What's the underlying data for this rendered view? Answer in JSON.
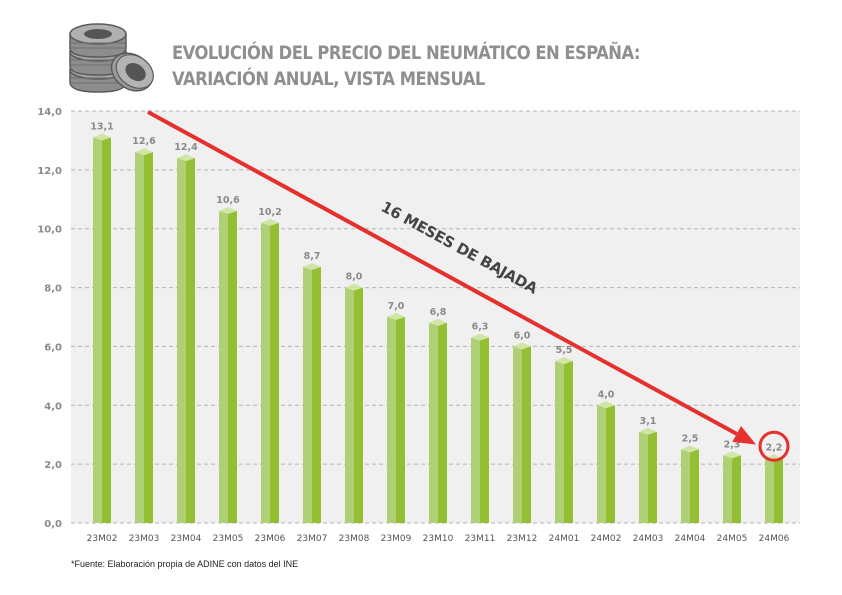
{
  "header": {
    "icon": "tire-stack-icon",
    "title_line1": "EVOLUCIÓN DEL PRECIO DEL NEUMÁTICO EN ESPAÑA:",
    "title_line2": "VARIACIÓN ANUAL, VISTA MENSUAL"
  },
  "footnote": "*Fuente: Elaboración propia de ADINE con datos del INE",
  "colors": {
    "bar_light": "#b0d078",
    "bar_dark": "#95bf33",
    "bar_top": "#cfe6a6",
    "plot_bg": "#eff0ef",
    "grid": "#b5b5b5",
    "arrow": "#e5312d",
    "highlight_circle": "#e5312d"
  },
  "chart_data": {
    "type": "bar",
    "title": "EVOLUCIÓN DEL PRECIO DEL NEUMÁTICO EN ESPAÑA: VARIACIÓN ANUAL, VISTA MENSUAL",
    "xlabel": "",
    "ylabel": "",
    "categories": [
      "23M02",
      "23M03",
      "23M04",
      "23M05",
      "23M06",
      "23M07",
      "23M08",
      "23M09",
      "23M10",
      "23M11",
      "23M12",
      "24M01",
      "24M02",
      "24M03",
      "24M04",
      "24M05",
      "24M06"
    ],
    "values": [
      13.1,
      12.6,
      12.4,
      10.6,
      10.2,
      8.7,
      8.0,
      7.0,
      6.8,
      6.3,
      6.0,
      5.5,
      4.0,
      3.1,
      2.5,
      2.3,
      2.2
    ],
    "value_labels": [
      "13,1",
      "12,6",
      "12,4",
      "10,6",
      "10,2",
      "8,7",
      "8,0",
      "7,0",
      "6,8",
      "6,3",
      "6,0",
      "5,5",
      "4,0",
      "3,1",
      "2,5",
      "2,3",
      "2,2"
    ],
    "ylim": [
      0,
      14
    ],
    "yticks": [
      0,
      2,
      4,
      6,
      8,
      10,
      12,
      14
    ],
    "ytick_labels": [
      "0,0",
      "2,0",
      "4,0",
      "6,0",
      "8,0",
      "10,0",
      "12,0",
      "14,0"
    ],
    "grid": true,
    "legend": "none",
    "annotations": {
      "trend_label": "16 MESES DE BAJADA",
      "trend_arrow": {
        "from_category": "23M03",
        "from_value": 14.0,
        "to_category": "24M06",
        "to_value": 2.6
      },
      "highlight": {
        "category": "24M06",
        "value": 2.2
      }
    }
  }
}
